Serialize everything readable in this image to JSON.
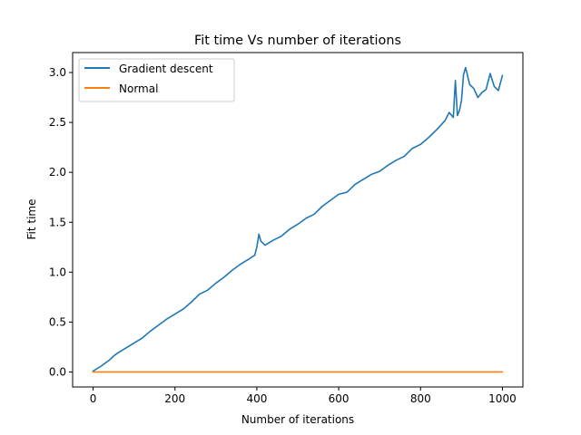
{
  "chart_data": {
    "type": "line",
    "title": "Fit time Vs number of iterations",
    "xlabel": "Number of iterations",
    "ylabel": "Fit time",
    "xlim": [
      -50,
      1050
    ],
    "ylim": [
      -0.15,
      3.2
    ],
    "xticks": [
      0,
      200,
      400,
      600,
      800,
      1000
    ],
    "xtick_labels": [
      "0",
      "200",
      "400",
      "600",
      "800",
      "1000"
    ],
    "yticks": [
      0.0,
      0.5,
      1.0,
      1.5,
      2.0,
      2.5,
      3.0
    ],
    "ytick_labels": [
      "0.0",
      "0.5",
      "1.0",
      "1.5",
      "2.0",
      "2.5",
      "3.0"
    ],
    "grid": false,
    "legend_position": "upper-left",
    "series": [
      {
        "name": "Gradient descent",
        "color": "#1f77b4",
        "x": [
          0,
          20,
          40,
          50,
          60,
          80,
          100,
          120,
          140,
          160,
          180,
          200,
          220,
          240,
          260,
          280,
          300,
          320,
          340,
          360,
          380,
          395,
          400,
          405,
          410,
          420,
          440,
          460,
          480,
          500,
          520,
          540,
          560,
          580,
          600,
          620,
          640,
          660,
          680,
          700,
          720,
          740,
          760,
          780,
          800,
          820,
          840,
          860,
          870,
          880,
          885,
          890,
          895,
          900,
          905,
          910,
          920,
          930,
          940,
          950,
          960,
          970,
          980,
          990,
          1000
        ],
        "y": [
          0.01,
          0.06,
          0.12,
          0.16,
          0.19,
          0.24,
          0.29,
          0.34,
          0.41,
          0.47,
          0.53,
          0.58,
          0.63,
          0.7,
          0.78,
          0.82,
          0.89,
          0.95,
          1.02,
          1.08,
          1.13,
          1.17,
          1.25,
          1.38,
          1.31,
          1.27,
          1.32,
          1.36,
          1.43,
          1.48,
          1.54,
          1.58,
          1.66,
          1.72,
          1.78,
          1.8,
          1.88,
          1.93,
          1.98,
          2.01,
          2.07,
          2.12,
          2.16,
          2.24,
          2.28,
          2.35,
          2.43,
          2.52,
          2.6,
          2.55,
          2.92,
          2.57,
          2.62,
          2.72,
          2.98,
          3.05,
          2.88,
          2.84,
          2.75,
          2.8,
          2.83,
          2.99,
          2.86,
          2.82,
          2.97
        ]
      },
      {
        "name": "Normal",
        "color": "#ff7f0e",
        "x": [
          0,
          100,
          200,
          300,
          400,
          500,
          600,
          700,
          800,
          900,
          1000
        ],
        "y": [
          0.0,
          0.0,
          0.0,
          0.0,
          0.0,
          0.0,
          0.0,
          0.0,
          0.0,
          0.0,
          0.0
        ]
      }
    ]
  }
}
